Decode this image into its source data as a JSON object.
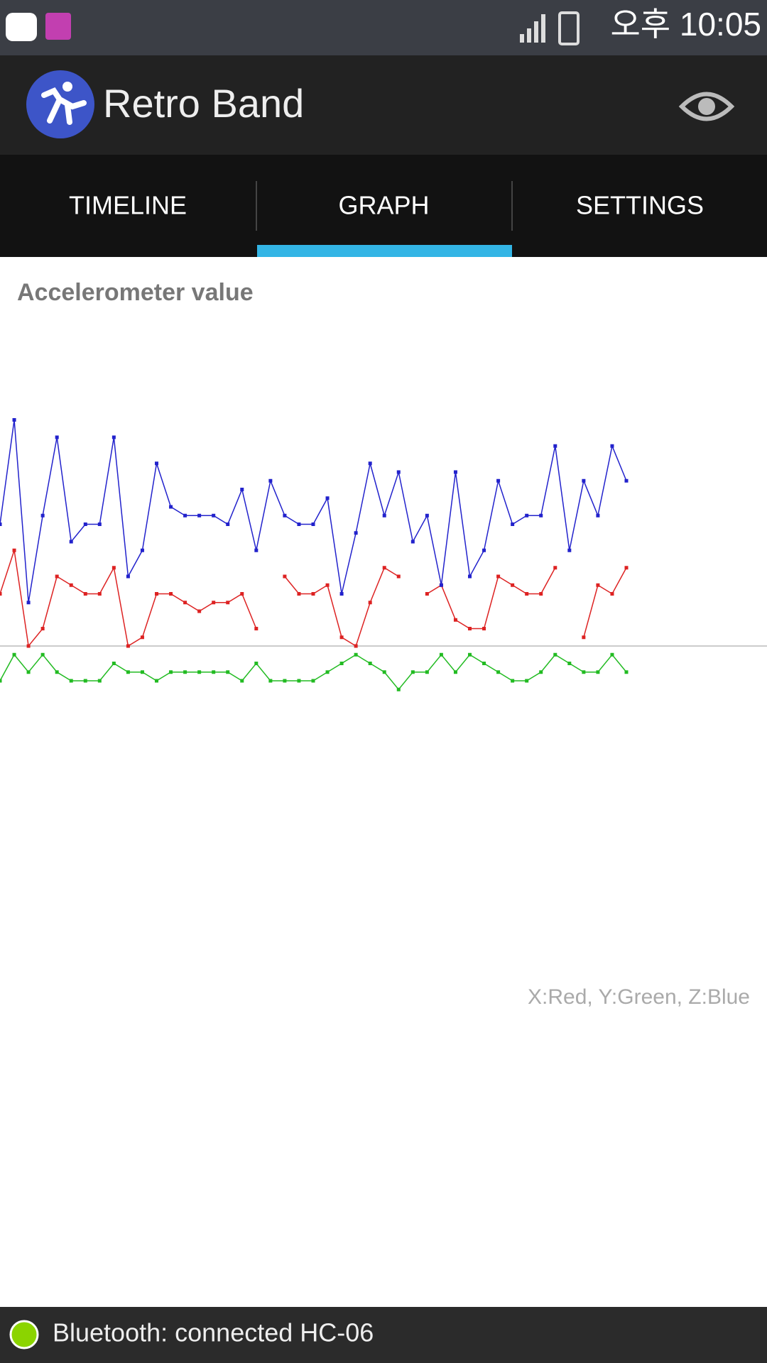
{
  "status_bar": {
    "time": "오후 10:05"
  },
  "app_bar": {
    "title": "Retro Band"
  },
  "tabs": [
    "TIMELINE",
    "GRAPH",
    "SETTINGS"
  ],
  "chart_data": {
    "type": "line",
    "title": "Accelerometer value",
    "legend": "X:Red, Y:Green, Z:Blue",
    "ylim": [
      -36,
      36
    ],
    "series": [
      {
        "color": "#dd2222",
        "values": [
          6,
          11,
          0,
          2,
          8,
          7,
          6,
          6,
          9,
          0,
          1,
          6,
          6,
          5,
          4,
          5,
          5,
          6,
          2,
          null,
          8,
          6,
          6,
          7,
          1,
          0,
          5,
          9,
          8,
          null,
          6,
          7,
          3,
          2,
          2,
          8,
          7,
          6,
          6,
          9,
          null,
          1,
          7,
          6,
          9
        ]
      },
      {
        "color": "#22bb22",
        "values": [
          -4,
          -1,
          -3,
          -1,
          -3,
          -4,
          -4,
          -4,
          -2,
          -3,
          -3,
          -4,
          -3,
          -3,
          -3,
          -3,
          -3,
          -4,
          -2,
          -4,
          -4,
          -4,
          -4,
          -3,
          -2,
          -1,
          -2,
          -3,
          -5,
          -3,
          -3,
          -1,
          -3,
          -1,
          -2,
          -3,
          -4,
          -4,
          -3,
          -1,
          -2,
          -3,
          -3,
          -1,
          -3
        ]
      },
      {
        "color": "#2222cc",
        "values": [
          14,
          26,
          5,
          15,
          24,
          12,
          14,
          14,
          24,
          8,
          11,
          21,
          16,
          15,
          15,
          15,
          14,
          18,
          11,
          19,
          15,
          14,
          14,
          17,
          6,
          13,
          21,
          15,
          20,
          12,
          15,
          7,
          20,
          8,
          11,
          19,
          14,
          15,
          15,
          23,
          11,
          19,
          15,
          23,
          19
        ]
      }
    ]
  },
  "footer": {
    "status": "Bluetooth: connected HC-06"
  }
}
